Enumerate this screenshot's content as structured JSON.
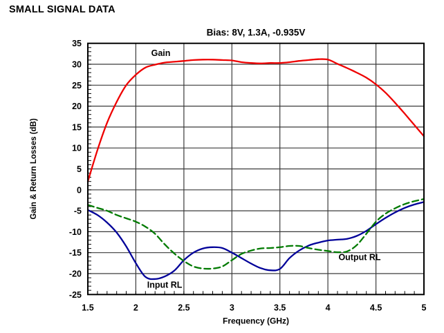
{
  "page": {
    "header": "SMALL SIGNAL DATA"
  },
  "chart_data": {
    "type": "line",
    "title": "Bias: 8V, 1.3A, -0.935V",
    "xlabel": "Frequency (GHz)",
    "ylabel": "Gain & Return Losses (dB)",
    "xlim": [
      1.5,
      5
    ],
    "ylim": [
      -25,
      35
    ],
    "grid": true,
    "x_ticks": {
      "values": [
        1.5,
        2,
        2.5,
        3,
        3.5,
        4,
        4.5,
        5
      ],
      "labels": [
        "1.5",
        "2",
        "2.5",
        "3",
        "3.5",
        "4",
        "4.5",
        "5"
      ]
    },
    "y_ticks": {
      "values": [
        35,
        30,
        25,
        20,
        15,
        10,
        5,
        0,
        -5,
        -10,
        -15,
        -20,
        -25
      ],
      "labels": [
        "35",
        "30",
        "25",
        "20",
        "15",
        "10",
        "5",
        "0",
        "-5",
        "-10",
        "-15",
        "-20",
        "-25"
      ]
    },
    "x_minor_step": 0.1,
    "y_minor_step": 1,
    "colors": {
      "frame": "#000000",
      "grid": "#3a3a3a",
      "text": "#000000"
    },
    "x": [
      1.5,
      1.6,
      1.7,
      1.8,
      1.9,
      2.0,
      2.1,
      2.2,
      2.3,
      2.4,
      2.5,
      2.6,
      2.7,
      2.8,
      2.9,
      3.0,
      3.1,
      3.2,
      3.3,
      3.4,
      3.5,
      3.6,
      3.7,
      3.8,
      3.9,
      4.0,
      4.1,
      4.2,
      4.3,
      4.4,
      4.5,
      4.6,
      4.7,
      4.8,
      4.9,
      5.0
    ],
    "series": [
      {
        "name": "Gain",
        "color": "#ee0000",
        "style": "solid",
        "values": [
          2.0,
          9.5,
          16.0,
          21.0,
          25.0,
          27.5,
          29.2,
          29.9,
          30.4,
          30.6,
          30.8,
          31.0,
          31.1,
          31.1,
          31.0,
          30.9,
          30.5,
          30.3,
          30.2,
          30.3,
          30.3,
          30.5,
          30.8,
          31.0,
          31.2,
          31.1,
          30.1,
          29.1,
          28.0,
          26.8,
          25.2,
          23.2,
          20.8,
          18.2,
          15.5,
          12.8
        ]
      },
      {
        "name": "Input RL",
        "color": "#000099",
        "style": "solid",
        "values": [
          -4.8,
          -6.0,
          -7.8,
          -10.2,
          -13.5,
          -17.5,
          -20.8,
          -21.3,
          -20.7,
          -19.3,
          -16.8,
          -15.0,
          -14.0,
          -13.7,
          -13.9,
          -15.0,
          -16.3,
          -17.6,
          -18.7,
          -19.2,
          -18.9,
          -16.3,
          -14.5,
          -13.3,
          -12.6,
          -12.1,
          -11.9,
          -11.7,
          -11.0,
          -9.8,
          -8.2,
          -6.7,
          -5.4,
          -4.3,
          -3.5,
          -2.9
        ]
      },
      {
        "name": "Output RL",
        "color": "#007a00",
        "style": "dashed",
        "values": [
          -3.6,
          -4.3,
          -5.0,
          -6.0,
          -6.8,
          -7.6,
          -8.8,
          -10.5,
          -13.0,
          -15.2,
          -17.0,
          -18.3,
          -18.8,
          -18.8,
          -18.3,
          -16.8,
          -15.3,
          -14.5,
          -14.0,
          -13.9,
          -13.7,
          -13.4,
          -13.4,
          -13.9,
          -14.3,
          -14.6,
          -14.9,
          -14.7,
          -13.2,
          -10.5,
          -7.6,
          -5.7,
          -4.4,
          -3.4,
          -2.7,
          -2.2
        ]
      }
    ],
    "annotations": [
      {
        "text": "Gain",
        "x": 2.26,
        "y": 32.6
      },
      {
        "text": "Input RL",
        "x": 2.3,
        "y": -22.7
      },
      {
        "text": "Output RL",
        "x": 4.33,
        "y": -16.1
      }
    ]
  }
}
